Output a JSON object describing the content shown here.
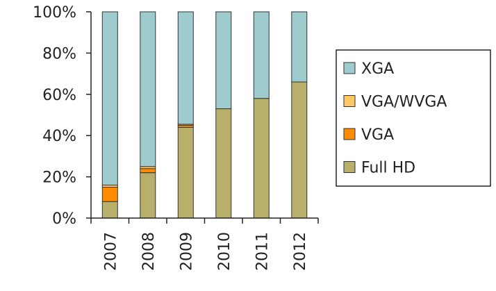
{
  "chart_data": {
    "type": "bar",
    "stacked": true,
    "percent": true,
    "categories": [
      "2007",
      "2008",
      "2009",
      "2010",
      "2011",
      "2012"
    ],
    "series": [
      {
        "name": "Full HD",
        "color": "#b8b06a",
        "values": [
          8,
          22,
          44,
          53,
          58,
          66
        ]
      },
      {
        "name": "VGA",
        "color": "#ff8c00",
        "values": [
          7,
          2,
          1,
          0,
          0,
          0
        ]
      },
      {
        "name": "VGA/WVGA",
        "color": "#ffc864",
        "values": [
          1,
          1,
          0.5,
          0,
          0,
          0
        ]
      },
      {
        "name": "XGA",
        "color": "#9ecbce",
        "values": [
          84,
          75,
          54.5,
          47,
          42,
          34
        ]
      }
    ],
    "ylim": [
      0,
      100
    ],
    "yticks": [
      "0%",
      "20%",
      "40%",
      "60%",
      "80%",
      "100%"
    ],
    "legend_order": [
      "XGA",
      "VGA/WVGA",
      "VGA",
      "Full HD"
    ],
    "legend_position": "right",
    "grid": false,
    "title": "",
    "xlabel": "",
    "ylabel": ""
  }
}
